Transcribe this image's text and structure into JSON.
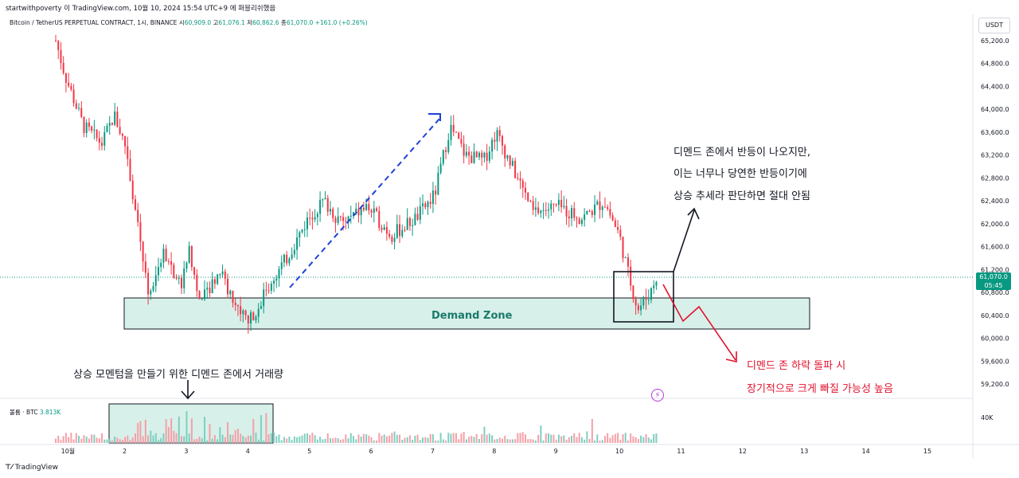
{
  "header": {
    "attribution": "startwithpoverty 이 TradingView.com, 10월 10, 2024 15:54 UTC+9 에 퍼블리쉬했음"
  },
  "symbol": {
    "name": "Bitcoin / TetherUS PERPETUAL CONTRACT, 1시, BINANCE",
    "open_label": "시",
    "open": "60,909.0",
    "high_label": "고",
    "high": "61,076.1",
    "low_label": "저",
    "low": "60,862.6",
    "close_label": "종",
    "close": "61,070.0",
    "change": "+161.0 (+0.26%)"
  },
  "price_axis": {
    "currency": "USDT",
    "ticks": [
      "65,200.0",
      "64,800.0",
      "64,400.0",
      "64,000.0",
      "63,600.0",
      "63,200.0",
      "62,800.0",
      "62,400.0",
      "62,000.0",
      "61,600.0",
      "61,200.0",
      "60,800.0",
      "60,400.0",
      "60,000.0",
      "59,600.0",
      "59,200.0"
    ],
    "last_price": "61,070.0",
    "countdown": "05:45"
  },
  "time_axis": {
    "ticks": [
      "10월",
      "2",
      "3",
      "4",
      "5",
      "6",
      "7",
      "8",
      "9",
      "10",
      "11",
      "12",
      "13",
      "14",
      "15"
    ]
  },
  "annotations": {
    "demand_zone": "Demand Zone",
    "note_bounce": [
      "디멘드 존에서 반등이 나오지만,",
      "이는 너무나 당연한 반등이기에",
      "상승 추세라 판단하면 절대 안됨"
    ],
    "note_breakdown": [
      "디멘드 존 하락 돌파 시",
      "장기적으로 크게 빠질 가능성 높음"
    ],
    "note_volume": "상승 모멘텀을 만들기 위한 디멘드 존에서 거래량"
  },
  "volume": {
    "label": "볼륨 · BTC",
    "value": "3.813K",
    "axis_tick": "40K"
  },
  "footer": {
    "brand": "TradingView"
  },
  "colors": {
    "up": "#089981",
    "down": "#f23645",
    "zone_fill": "#d8f0ea",
    "trend_line": "#1e40d6",
    "arrow_red": "#e0132f"
  },
  "chart_data": {
    "type": "candlestick",
    "x_unit": "day (Oct 2024)",
    "ylim": [
      59000,
      65400
    ],
    "demand_zone": [
      60150,
      60700
    ],
    "close_path": [
      {
        "day": 0.85,
        "price": 65200
      },
      {
        "day": 1.0,
        "price": 64600
      },
      {
        "day": 1.3,
        "price": 63700
      },
      {
        "day": 1.6,
        "price": 63400
      },
      {
        "day": 1.8,
        "price": 63900
      },
      {
        "day": 2.0,
        "price": 63300
      },
      {
        "day": 2.2,
        "price": 61800
      },
      {
        "day": 2.35,
        "price": 60800
      },
      {
        "day": 2.6,
        "price": 61500
      },
      {
        "day": 2.9,
        "price": 60900
      },
      {
        "day": 3.0,
        "price": 61600
      },
      {
        "day": 3.2,
        "price": 60600
      },
      {
        "day": 3.5,
        "price": 61200
      },
      {
        "day": 3.8,
        "price": 60500
      },
      {
        "day": 4.0,
        "price": 60300
      },
      {
        "day": 4.3,
        "price": 60900
      },
      {
        "day": 4.6,
        "price": 61400
      },
      {
        "day": 4.95,
        "price": 62100
      },
      {
        "day": 5.2,
        "price": 62400
      },
      {
        "day": 5.5,
        "price": 62000
      },
      {
        "day": 5.9,
        "price": 62300
      },
      {
        "day": 6.3,
        "price": 61800
      },
      {
        "day": 6.7,
        "price": 62100
      },
      {
        "day": 7.0,
        "price": 62500
      },
      {
        "day": 7.25,
        "price": 63700
      },
      {
        "day": 7.5,
        "price": 63200
      },
      {
        "day": 7.8,
        "price": 63100
      },
      {
        "day": 8.0,
        "price": 63600
      },
      {
        "day": 8.3,
        "price": 62900
      },
      {
        "day": 8.6,
        "price": 62200
      },
      {
        "day": 9.0,
        "price": 62300
      },
      {
        "day": 9.4,
        "price": 62100
      },
      {
        "day": 9.75,
        "price": 62400
      },
      {
        "day": 10.0,
        "price": 61800
      },
      {
        "day": 10.15,
        "price": 61100
      },
      {
        "day": 10.3,
        "price": 60500
      },
      {
        "day": 10.5,
        "price": 60800
      },
      {
        "day": 10.6,
        "price": 61070
      }
    ]
  }
}
